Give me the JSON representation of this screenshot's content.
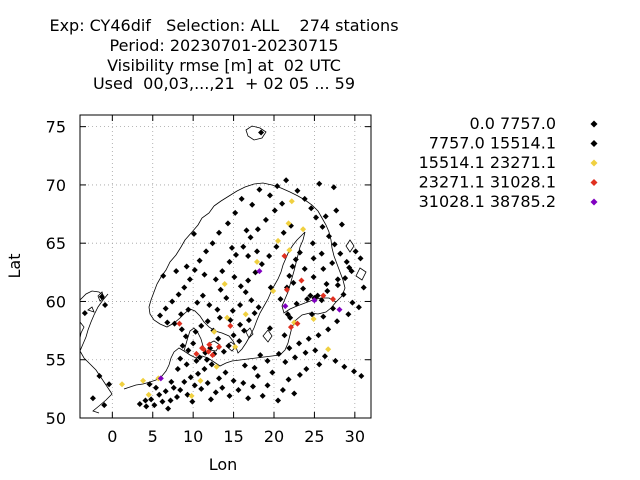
{
  "title_lines": [
    "Exp: CY46dif   Selection: ALL    274 stations",
    "Period: 20230701-20230715",
    "Visibility rmse [m] at  02 UTC",
    "Used  00,03,...,21  + 02 05 ... 59"
  ],
  "chart_data": {
    "type": "scatter",
    "xlabel": "Lon",
    "ylabel": "Lat",
    "xlim": [
      -4,
      32
    ],
    "ylim": [
      50,
      76
    ],
    "xticks": [
      0,
      5,
      10,
      15,
      20,
      25,
      30
    ],
    "yticks": [
      50,
      55,
      60,
      65,
      70,
      75
    ],
    "grid": true,
    "legend_position": "right",
    "colors": {
      "frame": "#000000",
      "grid": "#a0a0a0",
      "coast": "#000000"
    },
    "series": [
      {
        "name": "0.0 7757.0",
        "color": "#000000",
        "points": [
          [
            3.4,
            51.2
          ],
          [
            4.2,
            51.0
          ],
          [
            4.8,
            51.6
          ],
          [
            5.2,
            51.1
          ],
          [
            5.8,
            52.0
          ],
          [
            6.2,
            51.4
          ],
          [
            6.6,
            52.3
          ],
          [
            7.2,
            51.5
          ],
          [
            7.6,
            52.6
          ],
          [
            8.0,
            51.8
          ],
          [
            8.4,
            52.4
          ],
          [
            8.9,
            53.1
          ],
          [
            9.3,
            52.0
          ],
          [
            9.7,
            53.5
          ],
          [
            10.2,
            52.8
          ],
          [
            10.6,
            53.8
          ],
          [
            11.0,
            52.5
          ],
          [
            11.4,
            54.2
          ],
          [
            11.8,
            53.0
          ],
          [
            12.3,
            54.6
          ],
          [
            12.8,
            52.2
          ],
          [
            13.2,
            53.4
          ],
          [
            13.6,
            52.6
          ],
          [
            14.0,
            53.9
          ],
          [
            14.5,
            51.9
          ],
          [
            15.0,
            53.2
          ],
          [
            15.6,
            52.4
          ],
          [
            16.2,
            53.0
          ],
          [
            16.8,
            51.7
          ],
          [
            17.4,
            52.7
          ],
          [
            18.0,
            53.6
          ],
          [
            18.6,
            51.9
          ],
          [
            19.2,
            52.8
          ],
          [
            19.8,
            53.9
          ],
          [
            20.5,
            51.5
          ],
          [
            21.1,
            52.4
          ],
          [
            21.8,
            53.3
          ],
          [
            22.5,
            52.1
          ],
          [
            23.2,
            53.7
          ],
          [
            10.8,
            55.2
          ],
          [
            11.5,
            55.6
          ],
          [
            12.1,
            56.0
          ],
          [
            10.0,
            56.4
          ],
          [
            9.4,
            55.8
          ],
          [
            8.7,
            56.2
          ],
          [
            9.1,
            57.0
          ],
          [
            10.3,
            57.4
          ],
          [
            11.0,
            57.9
          ],
          [
            11.8,
            58.3
          ],
          [
            12.5,
            57.5
          ],
          [
            13.1,
            56.8
          ],
          [
            13.8,
            55.7
          ],
          [
            14.4,
            56.2
          ],
          [
            15.0,
            57.1
          ],
          [
            15.7,
            56.6
          ],
          [
            16.3,
            57.5
          ],
          [
            16.9,
            58.4
          ],
          [
            17.6,
            59.0
          ],
          [
            18.1,
            59.5
          ],
          [
            17.2,
            60.1
          ],
          [
            16.5,
            60.8
          ],
          [
            15.8,
            59.7
          ],
          [
            14.9,
            59.2
          ],
          [
            14.1,
            60.3
          ],
          [
            13.4,
            61.0
          ],
          [
            12.8,
            61.9
          ],
          [
            13.6,
            62.6
          ],
          [
            14.5,
            63.4
          ],
          [
            15.3,
            64.0
          ],
          [
            16.2,
            64.7
          ],
          [
            17.1,
            65.5
          ],
          [
            18.0,
            66.2
          ],
          [
            19.0,
            67.0
          ],
          [
            20.1,
            67.8
          ],
          [
            21.0,
            68.4
          ],
          [
            19.5,
            69.1
          ],
          [
            18.2,
            69.6
          ],
          [
            17.3,
            68.3
          ],
          [
            16.0,
            68.8
          ],
          [
            15.2,
            67.6
          ],
          [
            14.3,
            66.7
          ],
          [
            13.2,
            65.9
          ],
          [
            12.4,
            65.0
          ],
          [
            11.6,
            64.3
          ],
          [
            10.8,
            63.5
          ],
          [
            10.2,
            62.7
          ],
          [
            9.6,
            61.9
          ],
          [
            8.9,
            61.2
          ],
          [
            8.2,
            60.6
          ],
          [
            7.4,
            60.0
          ],
          [
            6.6,
            59.4
          ],
          [
            5.9,
            58.8
          ],
          [
            6.8,
            58.2
          ],
          [
            7.7,
            58.1
          ],
          [
            8.5,
            58.9
          ],
          [
            9.4,
            59.3
          ],
          [
            10.5,
            59.9
          ],
          [
            11.2,
            60.5
          ],
          [
            12.0,
            59.7
          ],
          [
            13.0,
            59.3
          ],
          [
            14.6,
            58.4
          ],
          [
            15.8,
            58.0
          ],
          [
            22.8,
            59.8
          ],
          [
            24.1,
            60.2
          ],
          [
            25.4,
            60.5
          ],
          [
            26.6,
            60.9
          ],
          [
            27.9,
            61.4
          ],
          [
            28.8,
            62.0
          ],
          [
            29.6,
            62.6
          ],
          [
            29.0,
            63.4
          ],
          [
            28.2,
            64.1
          ],
          [
            27.5,
            64.9
          ],
          [
            26.8,
            65.6
          ],
          [
            26.0,
            66.4
          ],
          [
            25.2,
            67.2
          ],
          [
            24.6,
            68.0
          ],
          [
            23.8,
            68.8
          ],
          [
            22.9,
            69.5
          ],
          [
            25.6,
            70.1
          ],
          [
            27.4,
            69.8
          ],
          [
            21.5,
            70.4
          ],
          [
            20.4,
            69.9
          ],
          [
            24.8,
            65.0
          ],
          [
            25.9,
            64.1
          ],
          [
            22.7,
            63.6
          ],
          [
            23.8,
            62.8
          ],
          [
            21.9,
            62.2
          ],
          [
            24.9,
            62.1
          ],
          [
            26.1,
            62.8
          ],
          [
            27.2,
            63.3
          ],
          [
            21.6,
            61.2
          ],
          [
            22.4,
            61.6
          ],
          [
            23.6,
            61.1
          ],
          [
            26.5,
            61.5
          ],
          [
            28.6,
            60.6
          ],
          [
            29.7,
            59.9
          ],
          [
            30.5,
            59.5
          ],
          [
            31.1,
            61.2
          ],
          [
            29.2,
            58.9
          ],
          [
            27.8,
            58.3
          ],
          [
            26.7,
            57.6
          ],
          [
            25.5,
            57.1
          ],
          [
            24.3,
            56.8
          ],
          [
            23.1,
            56.4
          ],
          [
            21.9,
            56.0
          ],
          [
            22.6,
            55.2
          ],
          [
            23.9,
            55.6
          ],
          [
            25.1,
            55.8
          ],
          [
            26.3,
            55.3
          ],
          [
            27.6,
            54.9
          ],
          [
            28.7,
            54.4
          ],
          [
            29.9,
            54.0
          ],
          [
            30.8,
            53.6
          ],
          [
            24.0,
            54.2
          ],
          [
            25.6,
            54.6
          ],
          [
            21.4,
            54.8
          ],
          [
            20.6,
            55.5
          ],
          [
            19.2,
            54.9
          ],
          [
            18.3,
            55.4
          ],
          [
            17.6,
            54.3
          ],
          [
            16.4,
            54.5
          ],
          [
            29.3,
            62.9
          ],
          [
            30.1,
            64.3
          ],
          [
            30.7,
            63.7
          ],
          [
            26.4,
            67.3
          ],
          [
            27.7,
            67.8
          ],
          [
            28.4,
            66.6
          ],
          [
            22.1,
            66.5
          ],
          [
            21.2,
            65.9
          ],
          [
            20.3,
            64.7
          ],
          [
            19.4,
            63.9
          ],
          [
            18.5,
            63.2
          ],
          [
            17.7,
            62.5
          ],
          [
            16.8,
            61.8
          ],
          [
            15.9,
            61.3
          ],
          [
            15.1,
            62.1
          ],
          [
            17.9,
            64.3
          ],
          [
            16.6,
            66.1
          ],
          [
            22.0,
            58.6
          ],
          [
            24.7,
            58.9
          ],
          [
            26.1,
            58.7
          ],
          [
            27.3,
            59.4
          ],
          [
            11.7,
            55.0
          ],
          [
            12.6,
            55.5
          ],
          [
            10.4,
            54.9
          ],
          [
            9.2,
            54.6
          ],
          [
            8.4,
            55.1
          ],
          [
            8.1,
            54.2
          ],
          [
            5.4,
            52.6
          ],
          [
            4.6,
            52.9
          ],
          [
            7.3,
            53.1
          ],
          [
            6.9,
            50.8
          ],
          [
            4.1,
            51.5
          ],
          [
            9.9,
            51.4
          ],
          [
            12.2,
            51.6
          ],
          [
            -3.4,
            59.0
          ],
          [
            -1.3,
            60.4
          ],
          [
            -0.9,
            59.7
          ],
          [
            -1.6,
            53.6
          ],
          [
            -0.4,
            52.9
          ],
          [
            -2.4,
            51.7
          ],
          [
            -1.0,
            51.1
          ],
          [
            24.5,
            60.5
          ],
          [
            25.0,
            60.3
          ],
          [
            25.9,
            60.1
          ],
          [
            18.4,
            74.5
          ],
          [
            16.8,
            63.9
          ],
          [
            14.8,
            64.6
          ],
          [
            19.6,
            61.2
          ],
          [
            20.8,
            60.2
          ],
          [
            11.4,
            62.3
          ],
          [
            10.1,
            65.8
          ],
          [
            9.2,
            63.0
          ],
          [
            7.9,
            62.6
          ],
          [
            6.3,
            62.2
          ],
          [
            8.6,
            57.6
          ],
          [
            13.3,
            58.6
          ],
          [
            19.5,
            57.7
          ],
          [
            21.3,
            57.1
          ],
          [
            21.7,
            58.9
          ],
          [
            24.9,
            63.7
          ],
          [
            23.2,
            64.2
          ],
          [
            22.3,
            63.0
          ],
          [
            27.9,
            61.9
          ]
        ]
      },
      {
        "name": "7757.0 15514.1",
        "color": "#000000",
        "points": []
      },
      {
        "name": "15514.1 23271.1",
        "color": "#f0d040",
        "points": [
          [
            1.2,
            52.9
          ],
          [
            3.8,
            53.2
          ],
          [
            4.5,
            52.0
          ],
          [
            5.7,
            53.4
          ],
          [
            9.8,
            51.9
          ],
          [
            10.9,
            53.2
          ],
          [
            12.9,
            54.4
          ],
          [
            14.2,
            58.6
          ],
          [
            16.5,
            58.9
          ],
          [
            17.9,
            63.4
          ],
          [
            20.5,
            65.2
          ],
          [
            21.9,
            64.4
          ],
          [
            22.2,
            68.6
          ],
          [
            21.8,
            66.7
          ],
          [
            23.6,
            66.2
          ],
          [
            26.7,
            55.9
          ],
          [
            24.9,
            58.5
          ],
          [
            22.5,
            58.2
          ],
          [
            19.9,
            60.9
          ],
          [
            13.9,
            61.5
          ],
          [
            15.2,
            56.1
          ],
          [
            12.6,
            57.4
          ]
        ]
      },
      {
        "name": "23271.1 31028.1",
        "color": "#e03020",
        "points": [
          [
            11.3,
            55.9
          ],
          [
            11.9,
            55.7
          ],
          [
            12.4,
            55.4
          ],
          [
            11.1,
            56.0
          ],
          [
            10.4,
            55.5
          ],
          [
            13.2,
            56.1
          ],
          [
            12.0,
            56.3
          ],
          [
            8.3,
            58.1
          ],
          [
            21.3,
            63.9
          ],
          [
            22.1,
            57.8
          ],
          [
            22.9,
            58.1
          ],
          [
            21.6,
            61.0
          ],
          [
            23.4,
            61.8
          ],
          [
            26.1,
            60.5
          ],
          [
            27.3,
            60.2
          ],
          [
            14.6,
            57.9
          ]
        ]
      },
      {
        "name": "31028.1 38785.2",
        "color": "#8000c0",
        "points": [
          [
            6.0,
            53.4
          ],
          [
            18.2,
            62.6
          ],
          [
            25.0,
            60.1
          ],
          [
            28.1,
            59.3
          ],
          [
            21.4,
            59.6
          ]
        ]
      }
    ]
  }
}
